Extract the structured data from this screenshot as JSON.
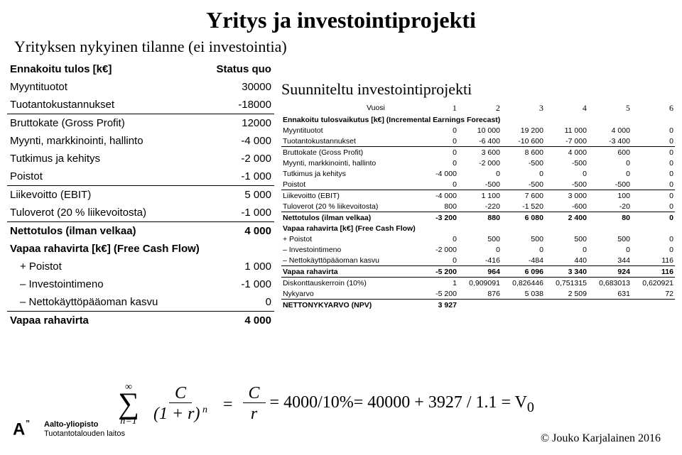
{
  "title": "Yritys ja investointiprojekti",
  "subtitle": "Yrityksen nykyinen tilanne (ei investointia)",
  "left": {
    "col_label": "Status quo",
    "rows": [
      {
        "label": "Ennakoitu tulos [k€]",
        "val": "",
        "bold": true
      },
      {
        "label": "Myyntituotot",
        "val": "30000"
      },
      {
        "label": "Tuotantokustannukset",
        "val": "-18000",
        "underline": true
      },
      {
        "label": "Bruttokate (Gross Profit)",
        "val": "12000"
      },
      {
        "label": "Myynti, markkinointi, hallinto",
        "val": "-4 000"
      },
      {
        "label": "Tutkimus ja kehitys",
        "val": "-2 000"
      },
      {
        "label": "Poistot",
        "val": "-1 000",
        "underline": true
      },
      {
        "label": "Liikevoitto (EBIT)",
        "val": "5 000"
      },
      {
        "label": "Tuloverot (20 % liikevoitosta)",
        "val": "-1 000",
        "underline": true
      },
      {
        "label": "Nettotulos (ilman velkaa)",
        "val": "4 000",
        "bold": true
      },
      {
        "label": "Vapaa rahavirta [k€] (Free Cash Flow)",
        "val": "",
        "bold": true
      },
      {
        "label": "+ Poistot",
        "val": "1 000",
        "indent": true
      },
      {
        "label": "– Investointimeno",
        "val": "-1 000",
        "indent": true
      },
      {
        "label": "– Nettokäyttöpääoman kasvu",
        "val": "0",
        "indent": true,
        "underline": true
      },
      {
        "label": "Vapaa rahavirta",
        "val": "4 000",
        "bold": true
      }
    ]
  },
  "right": {
    "plan_title": "Suunniteltu investointiprojekti",
    "year_label": "Vuosi",
    "year_glyphs": [
      "1",
      "2",
      "3",
      "4",
      "5",
      "6"
    ],
    "forecast_label": "Ennakoitu tulosvaikutus [k€] (Incremental Earnings Forecast)",
    "rows": [
      {
        "label": "Myyntituotot",
        "v": [
          "0",
          "10 000",
          "19 200",
          "11 000",
          "4 000",
          "0"
        ]
      },
      {
        "label": "Tuotantokustannukset",
        "v": [
          "0",
          "-6 400",
          "-10 600",
          "-7 000",
          "-3 400",
          "0"
        ],
        "ul": true
      },
      {
        "label": "Bruttokate (Gross Profit)",
        "v": [
          "0",
          "3 600",
          "8 600",
          "4 000",
          "600",
          "0"
        ]
      },
      {
        "label": "Myynti, markkinointi, hallinto",
        "v": [
          "0",
          "-2 000",
          "-500",
          "-500",
          "0",
          "0"
        ]
      },
      {
        "label": "Tutkimus ja kehitys",
        "v": [
          "-4 000",
          "0",
          "0",
          "0",
          "0",
          "0"
        ]
      },
      {
        "label": "Poistot",
        "v": [
          "0",
          "-500",
          "-500",
          "-500",
          "-500",
          "0"
        ],
        "ul": true
      },
      {
        "label": "Liikevoitto (EBIT)",
        "v": [
          "-4 000",
          "1 100",
          "7 600",
          "3 000",
          "100",
          "0"
        ]
      },
      {
        "label": "Tuloverot (20 % liikevoitosta)",
        "v": [
          "800",
          "-220",
          "-1 520",
          "-600",
          "-20",
          "0"
        ],
        "ul": true
      },
      {
        "label": "Nettotulos (ilman velkaa)",
        "v": [
          "-3 200",
          "880",
          "6 080",
          "2 400",
          "80",
          "0"
        ],
        "bold": true
      }
    ],
    "fcf_label": "Vapaa rahavirta [k€] (Free Cash Flow)",
    "fcf_rows": [
      {
        "label": "+ Poistot",
        "v": [
          "0",
          "500",
          "500",
          "500",
          "500",
          "0"
        ]
      },
      {
        "label": "– Investointimeno",
        "v": [
          "-2 000",
          "0",
          "0",
          "0",
          "0",
          "0"
        ]
      },
      {
        "label": "– Nettokäyttöpääoman kasvu",
        "v": [
          "0",
          "-416",
          "-484",
          "440",
          "344",
          "116"
        ],
        "ul": true
      },
      {
        "label": "Vapaa rahavirta",
        "v": [
          "-5 200",
          "964",
          "6 096",
          "3 340",
          "924",
          "116"
        ],
        "bold": true
      }
    ],
    "disc_rows": [
      {
        "label": "Diskonttauskerroin (10%)",
        "v": [
          "1",
          "0,909091",
          "0,826446",
          "0,751315",
          "0,683013",
          "0,620921"
        ]
      },
      {
        "label": "Nykyarvo",
        "v": [
          "-5 200",
          "876",
          "5 038",
          "2 509",
          "631",
          "72"
        ],
        "ul": true
      },
      {
        "label": "NETTONYKYARVO (NPV)",
        "v": [
          "3 927",
          "",
          "",
          "",
          "",
          ""
        ],
        "bold": true
      }
    ]
  },
  "formula_tail": "= 4000/10%= 40000 + 3927 / 1.1 = V",
  "formula_sub": "0",
  "logo": {
    "uni": "Aalto-yliopisto",
    "dept": "Tuotantotalouden laitos"
  },
  "copyright": "© Jouko Karjalainen 2016"
}
